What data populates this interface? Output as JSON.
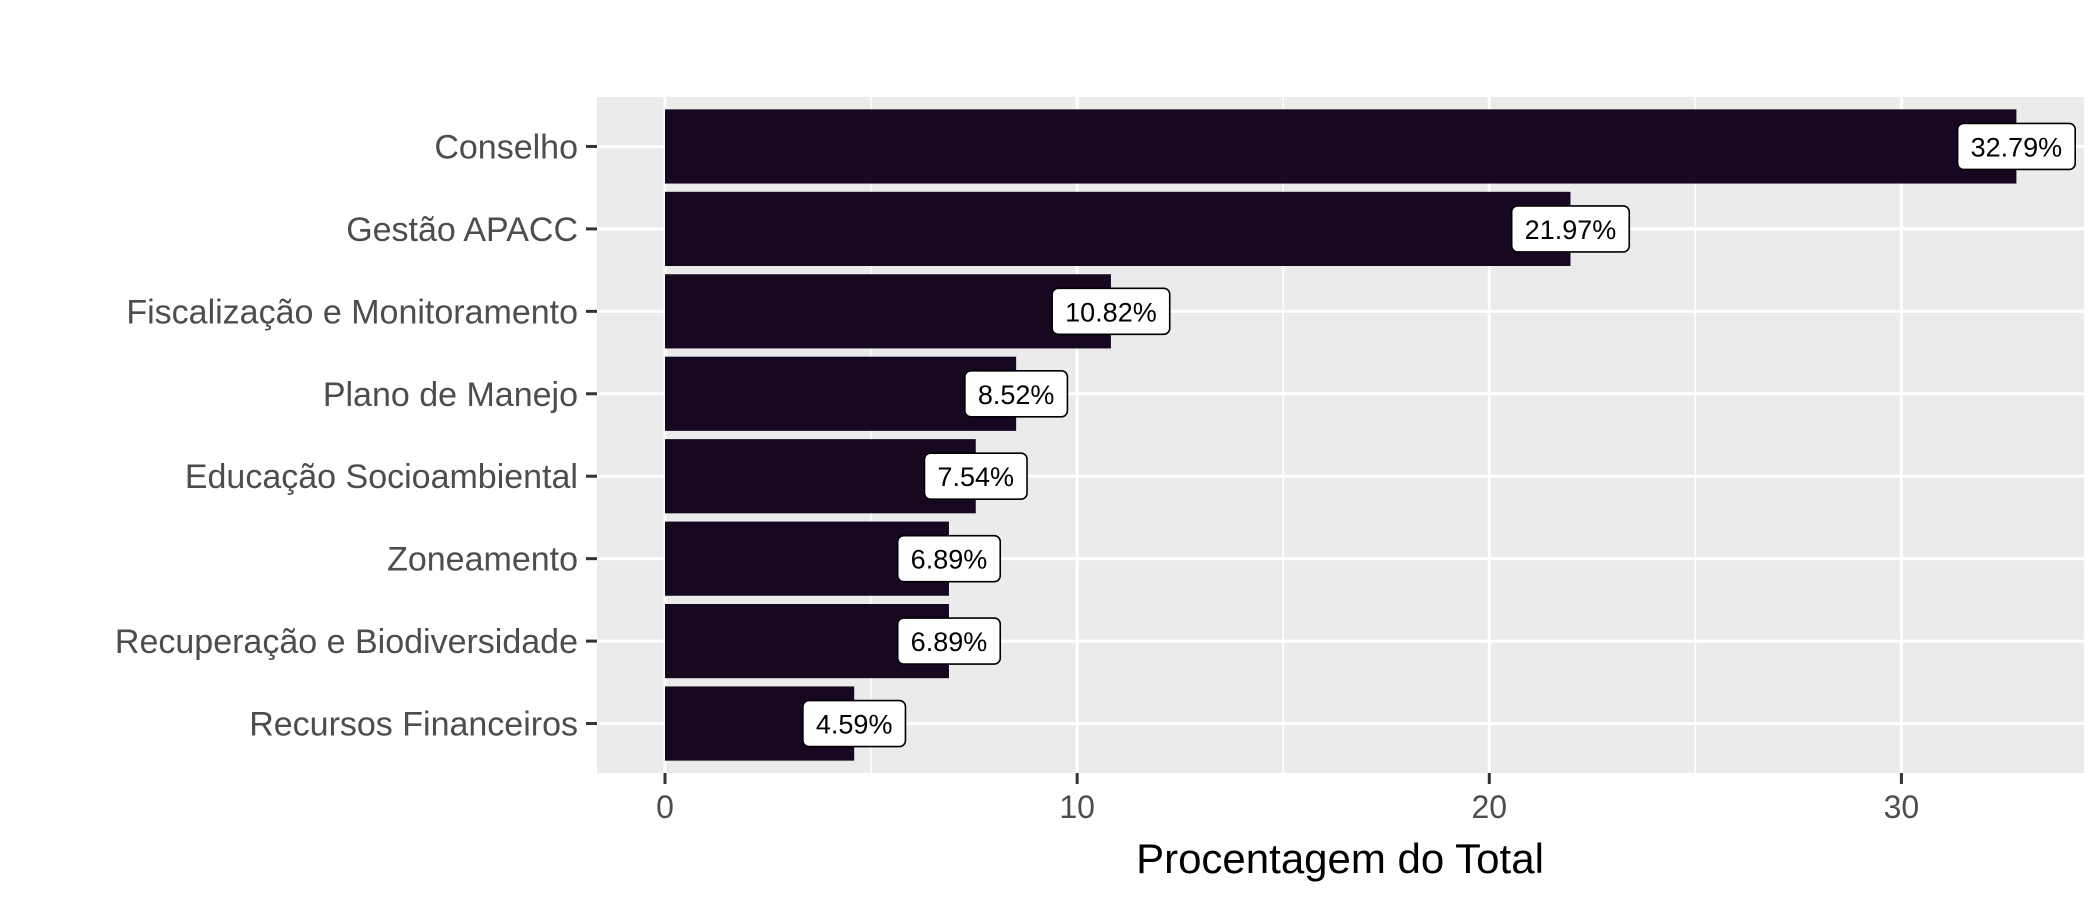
{
  "chart_data": {
    "type": "bar",
    "orientation": "horizontal",
    "categories": [
      "Conselho",
      "Gestão APACC",
      "Fiscalização e Monitoramento",
      "Plano de Manejo",
      "Educação Socioambiental",
      "Zoneamento",
      "Recuperação e Biodiversidade",
      "Recursos Financeiros"
    ],
    "values": [
      32.79,
      21.97,
      10.82,
      8.52,
      7.54,
      6.89,
      6.89,
      4.59
    ],
    "data_labels": [
      "32.79%",
      "21.97%",
      "10.82%",
      "8.52%",
      "7.54%",
      "6.89%",
      "6.89%",
      "4.59%"
    ],
    "title": "",
    "xlabel": "Procentagem do Total",
    "ylabel": "",
    "xlim": [
      -1.65,
      34.43
    ],
    "xticks": [
      0,
      10,
      20,
      30
    ],
    "grid": true,
    "legend": "none",
    "colors": {
      "bar": "#170721",
      "panel": "#ebebeb",
      "grid_major": "#ffffff",
      "label_fill": "#ffffff",
      "label_border": "#000000"
    }
  }
}
